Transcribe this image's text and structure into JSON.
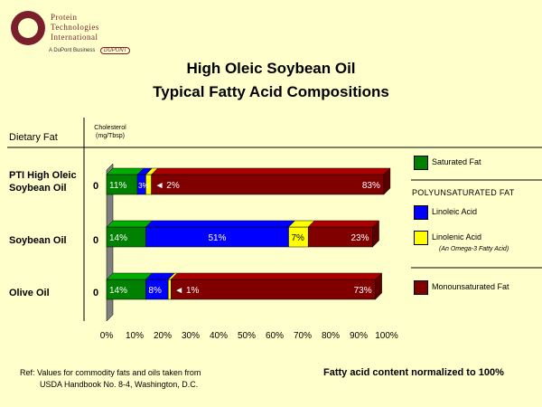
{
  "logo": {
    "line1": "Protein",
    "line2": "Technologies",
    "line3": "International",
    "sub": "A DuPont Business",
    "badge": "DUPONT"
  },
  "title_line1": "High Oleic Soybean Oil",
  "title_line2": "Typical Fatty Acid Compositions",
  "headers": {
    "dietary_fat": "Dietary Fat",
    "chol_line1": "Cholesterol",
    "chol_line2": "(mg/Tbsp)"
  },
  "legend": {
    "saturated": "Saturated Fat",
    "poly_header": "POLYUNSATURATED FAT",
    "linoleic": "Linoleic Acid",
    "linolenic": "Linolenic Acid",
    "linolenic_note": "(An Omega-3 Fatty Acid)",
    "mono": "Monounsaturated Fat"
  },
  "colors": {
    "saturated": "#008000",
    "linoleic": "#0000FF",
    "linolenic": "#FFFF00",
    "mono": "#800000",
    "wall": "#808080"
  },
  "footer": {
    "ref_line1": "Ref:  Values for commodity fats and oils taken from",
    "ref_line2": "USDA Handbook No. 8-4, Washington, D.C.",
    "normalized": "Fatty acid content normalized to 100%"
  },
  "chart_data": {
    "type": "bar",
    "orientation": "horizontal",
    "stacked": true,
    "categories": [
      "PTI High Oleic Soybean Oil",
      "Soybean Oil",
      "Olive Oil"
    ],
    "category_lines": [
      [
        "PTI High Oleic",
        "Soybean Oil"
      ],
      [
        "Soybean Oil"
      ],
      [
        "Olive Oil"
      ]
    ],
    "cholesterol": [
      "0",
      "0",
      "0"
    ],
    "series": [
      {
        "name": "Saturated Fat",
        "values": [
          11,
          14,
          14
        ],
        "labels": [
          "11%",
          "14%",
          "14%"
        ]
      },
      {
        "name": "Linoleic Acid",
        "values": [
          3,
          51,
          8
        ],
        "labels": [
          "3%",
          "51%",
          "8%"
        ]
      },
      {
        "name": "Linolenic Acid",
        "values": [
          2,
          7,
          1
        ],
        "labels": [
          "2%",
          "7%",
          "1%"
        ]
      },
      {
        "name": "Monounsaturated Fat",
        "values": [
          83,
          23,
          73
        ],
        "labels": [
          "83%",
          "23%",
          "73%"
        ]
      }
    ],
    "xlim": [
      0,
      100
    ],
    "xticks": [
      "0%",
      "10%",
      "20%",
      "30%",
      "40%",
      "50%",
      "60%",
      "70%",
      "80%",
      "90%",
      "100%"
    ],
    "legend_position": "right"
  }
}
